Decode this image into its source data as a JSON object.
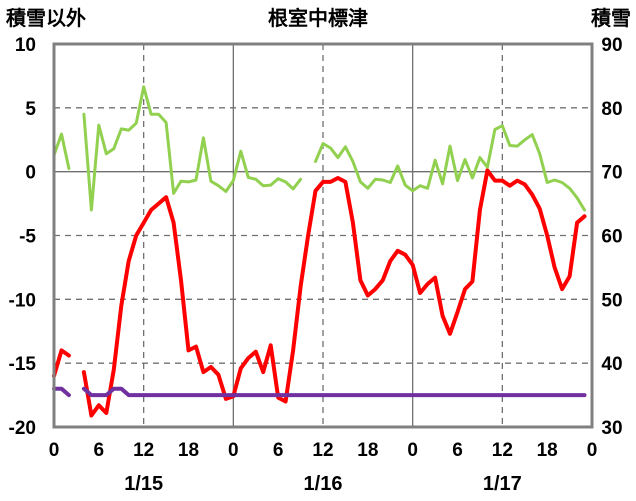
{
  "chart_data": {
    "type": "line",
    "title": "根室中標津",
    "left_axis_label": "積雪以外",
    "right_axis_label": "積雪",
    "y_left": {
      "min": -20,
      "max": 10,
      "ticks": [
        10,
        5,
        0,
        -5,
        -10,
        -15,
        -20
      ]
    },
    "y_right": {
      "min": 30,
      "max": 90,
      "ticks": [
        90,
        80,
        70,
        60,
        50,
        40,
        30
      ]
    },
    "x": {
      "min": 0,
      "max": 72,
      "tick_step": 6
    },
    "x_tick_labels": [
      "0",
      "6",
      "12",
      "18",
      "0",
      "6",
      "12",
      "18",
      "0",
      "6",
      "12",
      "18",
      "0"
    ],
    "dashed_x": [
      12,
      36,
      60
    ],
    "solid_x": [
      24,
      48
    ],
    "dashed_y": [
      5,
      -5,
      -10,
      -15
    ],
    "solid_y": [
      0
    ],
    "date_labels": [
      {
        "x": 12,
        "label": "1/15"
      },
      {
        "x": 36,
        "label": "1/16"
      },
      {
        "x": 60,
        "label": "1/17"
      }
    ],
    "series": [
      {
        "axis": "left",
        "color": "#ff0000",
        "width": 4,
        "segments": [
          [
            [
              0,
              -16.0
            ],
            [
              1,
              -14.0
            ],
            [
              2,
              -14.4
            ]
          ],
          [
            [
              4,
              -15.7
            ],
            [
              5,
              -19.1
            ],
            [
              6,
              -18.3
            ],
            [
              7,
              -18.9
            ],
            [
              8,
              -15.5
            ],
            [
              9,
              -10.5
            ],
            [
              10,
              -7.0
            ],
            [
              11,
              -5.0
            ],
            [
              12,
              -4.0
            ],
            [
              13,
              -3.0
            ],
            [
              14,
              -2.5
            ],
            [
              15,
              -2.0
            ],
            [
              16,
              -4.0
            ],
            [
              17,
              -8.5
            ],
            [
              18,
              -14.0
            ],
            [
              19,
              -13.7
            ],
            [
              20,
              -15.7
            ],
            [
              21,
              -15.3
            ],
            [
              22,
              -15.9
            ],
            [
              23,
              -17.8
            ],
            [
              24,
              -17.6
            ],
            [
              25,
              -15.4
            ],
            [
              26,
              -14.6
            ],
            [
              27,
              -14.1
            ],
            [
              28,
              -15.7
            ],
            [
              29,
              -13.6
            ],
            [
              30,
              -17.7
            ],
            [
              31,
              -18.0
            ],
            [
              32,
              -14.0
            ],
            [
              33,
              -9.0
            ],
            [
              34,
              -5.0
            ],
            [
              35,
              -1.5
            ],
            [
              36,
              -0.8
            ],
            [
              37,
              -0.8
            ],
            [
              38,
              -0.5
            ],
            [
              39,
              -0.8
            ],
            [
              40,
              -4.0
            ],
            [
              41,
              -8.5
            ],
            [
              42,
              -9.7
            ],
            [
              43,
              -9.2
            ],
            [
              44,
              -8.5
            ],
            [
              45,
              -7.0
            ],
            [
              46,
              -6.2
            ],
            [
              47,
              -6.5
            ],
            [
              48,
              -7.3
            ],
            [
              49,
              -9.5
            ],
            [
              50,
              -8.8
            ],
            [
              51,
              -8.3
            ],
            [
              52,
              -11.3
            ],
            [
              53,
              -12.7
            ],
            [
              54,
              -11.0
            ],
            [
              55,
              -9.2
            ],
            [
              56,
              -8.6
            ],
            [
              57,
              -3.0
            ],
            [
              58,
              0.1
            ],
            [
              59,
              -0.7
            ],
            [
              60,
              -0.7
            ],
            [
              61,
              -1.1
            ],
            [
              62,
              -0.7
            ],
            [
              63,
              -1.0
            ],
            [
              64,
              -1.8
            ],
            [
              65,
              -2.9
            ],
            [
              66,
              -5.0
            ],
            [
              67,
              -7.5
            ],
            [
              68,
              -9.2
            ],
            [
              69,
              -8.2
            ],
            [
              70,
              -4.0
            ],
            [
              71,
              -3.5
            ]
          ]
        ]
      },
      {
        "axis": "right",
        "color": "#92d050",
        "width": 3,
        "segments": [
          [
            [
              0,
              72.6
            ],
            [
              1,
              75.9
            ],
            [
              2,
              70.5
            ]
          ],
          [
            [
              4,
              79.0
            ],
            [
              5,
              64.0
            ],
            [
              6,
              77.3
            ],
            [
              7,
              72.8
            ],
            [
              8,
              73.6
            ],
            [
              9,
              76.7
            ],
            [
              10,
              76.5
            ],
            [
              11,
              77.6
            ],
            [
              12,
              83.3
            ],
            [
              13,
              79.0
            ],
            [
              14,
              79.0
            ],
            [
              15,
              77.7
            ],
            [
              16,
              66.6
            ],
            [
              17,
              68.5
            ],
            [
              18,
              68.4
            ],
            [
              19,
              68.7
            ],
            [
              20,
              75.3
            ],
            [
              21,
              68.5
            ],
            [
              22,
              67.8
            ],
            [
              23,
              66.9
            ],
            [
              24,
              68.6
            ],
            [
              25,
              73.2
            ],
            [
              26,
              69.1
            ],
            [
              27,
              68.8
            ],
            [
              28,
              67.8
            ],
            [
              29,
              67.9
            ],
            [
              30,
              68.9
            ],
            [
              31,
              68.4
            ],
            [
              32,
              67.3
            ],
            [
              33,
              68.8
            ]
          ],
          [
            [
              35,
              71.6
            ],
            [
              36,
              74.4
            ],
            [
              37,
              73.7
            ],
            [
              38,
              72.2
            ],
            [
              39,
              73.9
            ],
            [
              40,
              71.6
            ],
            [
              41,
              68.4
            ],
            [
              42,
              67.4
            ],
            [
              43,
              68.8
            ],
            [
              44,
              68.7
            ],
            [
              45,
              68.3
            ],
            [
              46,
              70.9
            ],
            [
              47,
              67.9
            ],
            [
              48,
              67.0
            ],
            [
              49,
              67.8
            ],
            [
              50,
              67.4
            ],
            [
              51,
              71.8
            ],
            [
              52,
              68.1
            ],
            [
              53,
              74.0
            ],
            [
              54,
              68.6
            ],
            [
              55,
              71.9
            ],
            [
              56,
              69.0
            ],
            [
              57,
              72.2
            ],
            [
              58,
              70.7
            ],
            [
              59,
              76.6
            ],
            [
              60,
              77.2
            ],
            [
              61,
              74.1
            ],
            [
              62,
              74.0
            ],
            [
              63,
              75.0
            ],
            [
              64,
              75.8
            ],
            [
              65,
              72.8
            ],
            [
              66,
              68.3
            ],
            [
              67,
              68.7
            ],
            [
              68,
              68.3
            ],
            [
              69,
              67.4
            ],
            [
              70,
              65.9
            ],
            [
              71,
              64.0
            ]
          ]
        ]
      },
      {
        "axis": "left",
        "color": "#7030a0",
        "width": 4,
        "segments": [
          [
            [
              0,
              -17.0
            ],
            [
              1,
              -17.0
            ],
            [
              2,
              -17.5
            ]
          ],
          [
            [
              4,
              -17.0
            ],
            [
              5,
              -17.5
            ],
            [
              6,
              -17.5
            ],
            [
              7,
              -17.5
            ],
            [
              8,
              -17.0
            ],
            [
              9,
              -17.0
            ],
            [
              10,
              -17.5
            ],
            [
              71,
              -17.5
            ]
          ]
        ]
      }
    ]
  }
}
